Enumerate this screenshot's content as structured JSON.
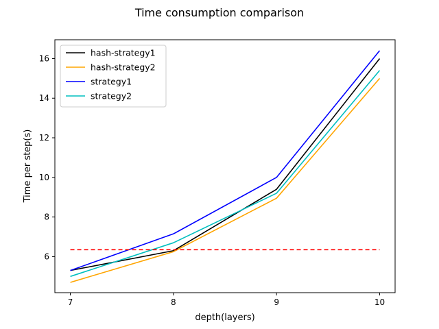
{
  "chart_data": {
    "type": "line",
    "title": "Time consumption comparison",
    "xlabel": "depth(layers)",
    "ylabel": "Time per step(s)",
    "x": [
      7,
      8,
      9,
      10
    ],
    "xticks": [
      "7",
      "8",
      "9",
      "10"
    ],
    "yticks": [
      "6",
      "8",
      "10",
      "12",
      "14",
      "16"
    ],
    "xlim": [
      6.85,
      10.15
    ],
    "ylim": [
      4.18,
      16.95
    ],
    "grid": false,
    "legend_position": "upper-left",
    "series": [
      {
        "name": "hash-strategy1",
        "color": "#000000",
        "values": [
          5.3,
          6.3,
          9.4,
          16.0
        ]
      },
      {
        "name": "hash-strategy2",
        "color": "#ffa500",
        "values": [
          4.7,
          6.25,
          8.95,
          15.0
        ]
      },
      {
        "name": "strategy1",
        "color": "#0000ff",
        "values": [
          5.3,
          7.15,
          10.0,
          16.4
        ]
      },
      {
        "name": "strategy2",
        "color": "#00bfbf",
        "values": [
          5.0,
          6.7,
          9.2,
          15.4
        ]
      }
    ],
    "reference_line": {
      "color": "#ff0000",
      "style": "dashed",
      "value": 6.35,
      "x_range": [
        7,
        10
      ]
    }
  }
}
